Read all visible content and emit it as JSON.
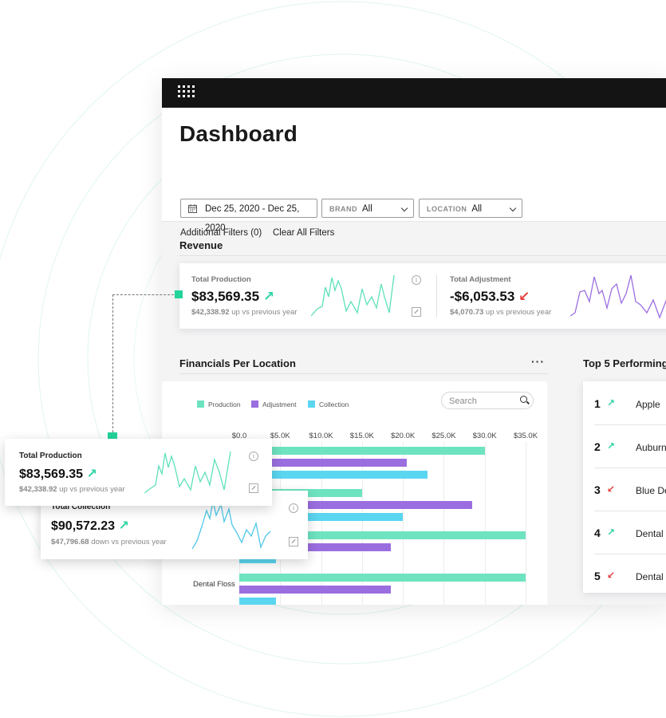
{
  "topbar": {
    "menu_icon": "grid-icon"
  },
  "header": {
    "title": "Dashboard",
    "date_range": "Dec 25, 2020 - Dec 25, 2020",
    "brand_label": "BRAND",
    "brand_value": "All",
    "location_label": "LOCATION",
    "location_value": "All",
    "additional_filters": "Additional Filters (0)",
    "clear_filters": "Clear All Filters"
  },
  "revenue": {
    "title": "Revenue",
    "metrics": [
      {
        "label": "Total Production",
        "value": "$83,569.35",
        "trend": "up",
        "sub_amount": "$42,338.92",
        "sub_text": "up vs previous year"
      },
      {
        "label": "Total Adjustment",
        "value": "-$6,053.53",
        "trend": "down",
        "sub_amount": "$4,070.73",
        "sub_text": "up vs previous year"
      }
    ]
  },
  "financials": {
    "title": "Financials Per Location",
    "more": "···",
    "legend": [
      "Production",
      "Adjustment",
      "Collection"
    ],
    "search_placeholder": "Search",
    "ticks": [
      "$0.0",
      "$5.0K",
      "$10.0K",
      "$15.0K",
      "$20.0K",
      "$25.0K",
      "$30.0K",
      "$35.0K"
    ],
    "visible_row_label": "Dental Floss"
  },
  "top5": {
    "title": "Top 5 Performing",
    "items": [
      {
        "rank": "1",
        "trend": "up",
        "name": "Apple"
      },
      {
        "rank": "2",
        "trend": "up",
        "name": "Auburn"
      },
      {
        "rank": "3",
        "trend": "down",
        "name": "Blue De"
      },
      {
        "rank": "4",
        "trend": "up",
        "name": "Dental"
      },
      {
        "rank": "5",
        "trend": "down",
        "name": "Dental"
      }
    ]
  },
  "floating": {
    "production": {
      "label": "Total Production",
      "value": "$83,569.35",
      "sub_amount": "$42,338.92",
      "sub_text": "up vs previous year"
    },
    "collection": {
      "label": "Total Collection",
      "value": "$90,572.23",
      "sub_amount": "$47,796.68",
      "sub_text": "down vs previous year"
    }
  },
  "colors": {
    "production": "#6ee3c0",
    "adjustment": "#9b6ee0",
    "collection": "#5bd6f0",
    "up": "#2fd3a4",
    "down": "#e43d3d",
    "topbar": "#141414"
  },
  "chart_data": {
    "type": "bar",
    "title": "Financials Per Location",
    "xlim": [
      0,
      35000
    ],
    "categories": [
      "",
      "",
      "",
      "Dental Floss"
    ],
    "series": [
      {
        "name": "Production",
        "values": [
          30000,
          15000,
          35000,
          35000
        ]
      },
      {
        "name": "Adjustment",
        "values": [
          20500,
          28500,
          18500,
          18500
        ]
      },
      {
        "name": "Collection",
        "values": [
          23000,
          20000,
          4500,
          4500
        ]
      }
    ]
  }
}
